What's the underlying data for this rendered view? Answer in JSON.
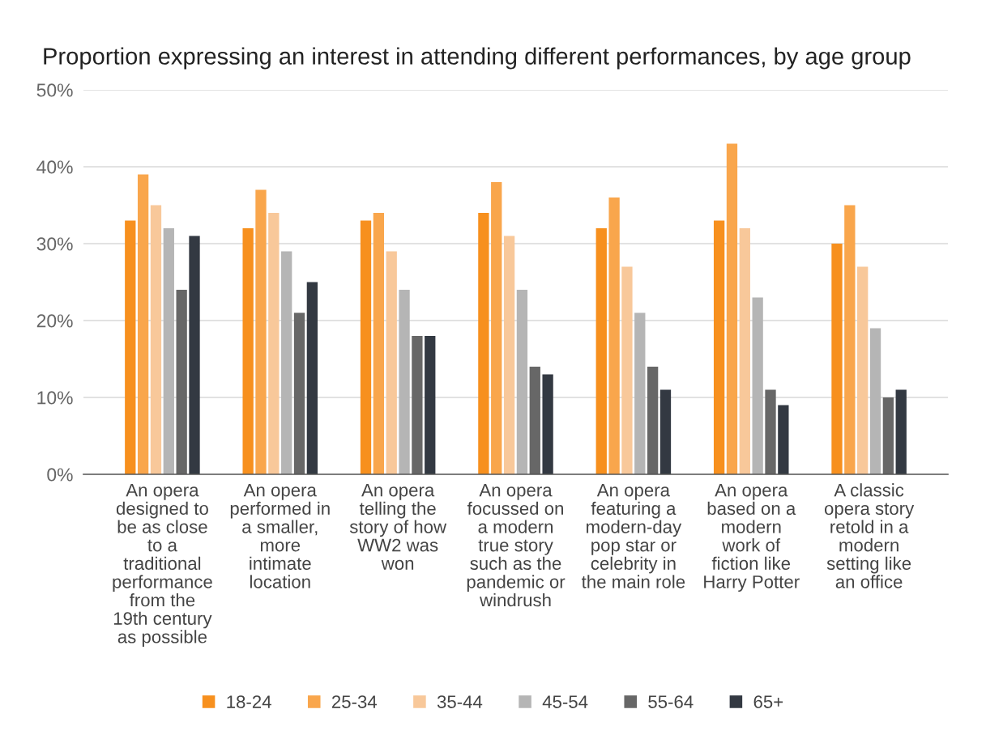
{
  "chart_data": {
    "type": "bar",
    "title": "Proportion expressing an interest in attending different performances, by age group",
    "categories": [
      "An opera\ndesigned to\nbe as close\nto a\ntraditional\nperformance\nfrom the\n19th century\nas possible",
      "An opera\nperformed in\na smaller,\nmore\nintimate\nlocation",
      "An opera\ntelling the\nstory of how\nWW2 was\nwon",
      "An opera\nfocussed on\na modern\ntrue story\nsuch as the\npandemic or\nwindrush",
      "An opera\nfeaturing a\nmodern-day\npop star or\ncelebrity in\nthe main role",
      "An opera\nbased on a\nmodern\nwork of\nfiction like\nHarry Potter",
      "A classic\nopera story\nretold in a\nmodern\nsetting like\nan office"
    ],
    "series": [
      {
        "name": "18-24",
        "color": "#f7901e",
        "values": [
          33,
          32,
          33,
          34,
          32,
          33,
          30
        ]
      },
      {
        "name": "25-34",
        "color": "#f9a64c",
        "values": [
          39,
          37,
          34,
          38,
          36,
          43,
          35
        ]
      },
      {
        "name": "35-44",
        "color": "#f8c89a",
        "values": [
          35,
          34,
          29,
          31,
          27,
          32,
          27
        ]
      },
      {
        "name": "45-54",
        "color": "#b5b5b5",
        "values": [
          32,
          29,
          24,
          24,
          21,
          23,
          19
        ]
      },
      {
        "name": "55-64",
        "color": "#676767",
        "values": [
          24,
          21,
          18,
          14,
          14,
          11,
          10
        ]
      },
      {
        "name": "65+",
        "color": "#333942",
        "values": [
          31,
          25,
          18,
          13,
          11,
          9,
          11
        ]
      }
    ],
    "ylim": [
      0,
      50
    ],
    "yticks": [
      {
        "value": 0,
        "label": "0%"
      },
      {
        "value": 10,
        "label": "10%"
      },
      {
        "value": 20,
        "label": "20%"
      },
      {
        "value": 30,
        "label": "30%"
      },
      {
        "value": 40,
        "label": "40%"
      },
      {
        "value": 50,
        "label": "50%"
      }
    ],
    "grid": "y",
    "legend": "bottom"
  }
}
